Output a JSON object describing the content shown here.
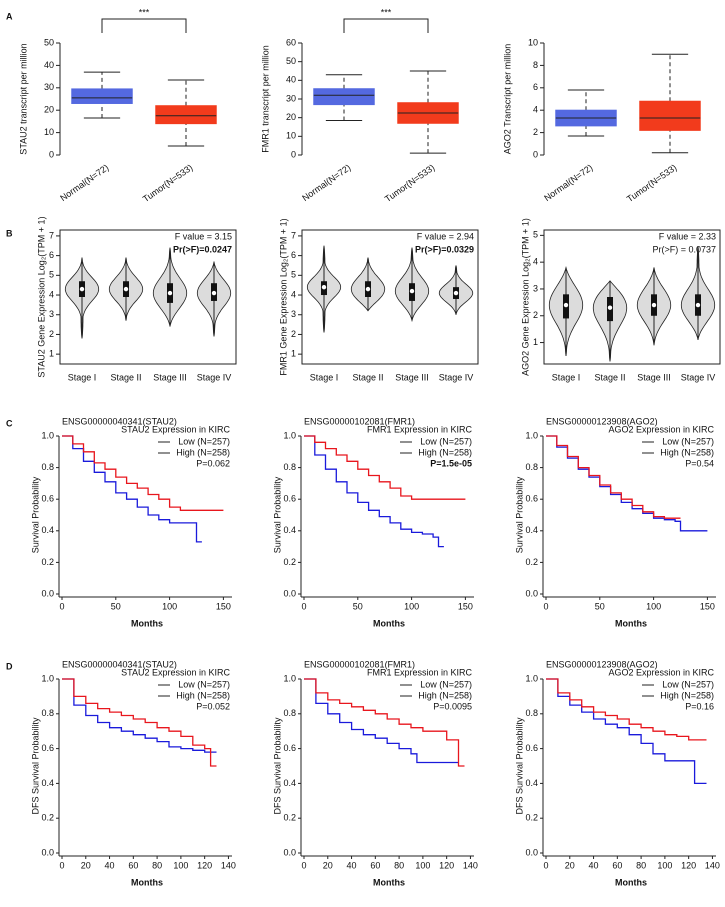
{
  "panel_labels": [
    "A",
    "B",
    "C",
    "D"
  ],
  "chart_data": [
    {
      "type": "box",
      "ylabel": "STAU2 transcript per million",
      "categories": [
        "Normal(N=72)",
        "Tumor(N=533)"
      ],
      "annotation": "***",
      "ylim": [
        0,
        50
      ],
      "yticks": [
        0,
        10,
        20,
        30,
        40,
        50
      ],
      "boxes": [
        {
          "min": 16.5,
          "q1": 23,
          "median": 25.5,
          "q3": 29.5,
          "max": 37,
          "color": "#5469e0"
        },
        {
          "min": 4,
          "q1": 14,
          "median": 17.5,
          "q3": 22,
          "max": 33.5,
          "color": "#f23b1c"
        }
      ]
    },
    {
      "type": "box",
      "ylabel": "FMR1 transcript per million",
      "categories": [
        "Normal(N=72)",
        "Tumor(N=533)"
      ],
      "annotation": "***",
      "ylim": [
        0,
        60
      ],
      "yticks": [
        0,
        10,
        20,
        30,
        40,
        50,
        60
      ],
      "boxes": [
        {
          "min": 18.5,
          "q1": 27,
          "median": 32,
          "q3": 35.5,
          "max": 43,
          "color": "#5469e0"
        },
        {
          "min": 1,
          "q1": 17,
          "median": 22.5,
          "q3": 28,
          "max": 45,
          "color": "#f23b1c"
        }
      ]
    },
    {
      "type": "box",
      "ylabel": "AGO2 Transcript per million",
      "categories": [
        "Normal(N=72)",
        "Tumor(N=533)"
      ],
      "ylim": [
        0,
        10
      ],
      "yticks": [
        0,
        2,
        4,
        6,
        8,
        10
      ],
      "boxes": [
        {
          "min": 1.7,
          "q1": 2.6,
          "median": 3.3,
          "q3": 4.0,
          "max": 5.8,
          "color": "#5469e0"
        },
        {
          "min": 0.2,
          "q1": 2.2,
          "median": 3.3,
          "q3": 4.8,
          "max": 9.0,
          "color": "#f23b1c"
        }
      ]
    },
    {
      "type": "violin",
      "ylabel": "STAU2 Gene Expression Log₂(TPM + 1)",
      "categories": [
        "Stage I",
        "Stage II",
        "Stage III",
        "Stage IV"
      ],
      "f_label": "F value = 3.15",
      "p_label": "Pr(>F)=0.0247",
      "p_color": "#e8232a",
      "p_bold": true,
      "color": "#dcdcdc",
      "ylim": [
        0.5,
        7.3
      ],
      "yticks": [
        1,
        2,
        3,
        4,
        5,
        6,
        7
      ],
      "violins": [
        {
          "min": 1.8,
          "q1": 3.9,
          "median": 4.3,
          "q3": 4.7,
          "max": 5.9
        },
        {
          "min": 2.7,
          "q1": 3.9,
          "median": 4.3,
          "q3": 4.7,
          "max": 5.9
        },
        {
          "min": 2.4,
          "q1": 3.6,
          "median": 4.1,
          "q3": 4.6,
          "max": 6.4
        },
        {
          "min": 1.9,
          "q1": 3.7,
          "median": 4.1,
          "q3": 4.6,
          "max": 5.7
        }
      ]
    },
    {
      "type": "violin",
      "ylabel": "FMR1 Gene Expression Log₂(TPM + 1)",
      "categories": [
        "Stage I",
        "Stage II",
        "Stage III",
        "Stage IV"
      ],
      "f_label": "F value = 2.94",
      "p_label": "Pr(>F)=0.0329",
      "p_color": "#e8232a",
      "p_bold": true,
      "color": "#dcdcdc",
      "ylim": [
        0.5,
        7.3
      ],
      "yticks": [
        1,
        2,
        3,
        4,
        5,
        6,
        7
      ],
      "violins": [
        {
          "min": 2.1,
          "q1": 4.0,
          "median": 4.4,
          "q3": 4.7,
          "max": 6.5
        },
        {
          "min": 3.2,
          "q1": 3.9,
          "median": 4.3,
          "q3": 4.7,
          "max": 5.9
        },
        {
          "min": 2.7,
          "q1": 3.7,
          "median": 4.2,
          "q3": 4.6,
          "max": 6.4
        },
        {
          "min": 3.0,
          "q1": 3.8,
          "median": 4.1,
          "q3": 4.4,
          "max": 5.5
        }
      ]
    },
    {
      "type": "violin",
      "ylabel": "AGO2 Gene Expression Log₂(TPM + 1)",
      "categories": [
        "Stage I",
        "Stage II",
        "Stage III",
        "Stage IV"
      ],
      "f_label": "F value = 2.33",
      "p_label": "Pr(>F) = 0.0737",
      "color": "#dcdcdc",
      "ylim": [
        0.2,
        5.2
      ],
      "yticks": [
        1,
        2,
        3,
        4,
        5
      ],
      "violins": [
        {
          "min": 0.5,
          "q1": 1.9,
          "median": 2.4,
          "q3": 2.8,
          "max": 3.8
        },
        {
          "min": 0.3,
          "q1": 1.8,
          "median": 2.3,
          "q3": 2.7,
          "max": 3.3
        },
        {
          "min": 0.9,
          "q1": 2.0,
          "median": 2.4,
          "q3": 2.8,
          "max": 3.8
        },
        {
          "min": 1.1,
          "q1": 2.0,
          "median": 2.4,
          "q3": 2.8,
          "max": 4.6
        }
      ]
    },
    {
      "type": "km",
      "title": "ENSG00000040341(STAU2)",
      "subtitle": "STAU2 Expression in KIRC",
      "xlabel": "Months",
      "ylabel": "Survival Probability",
      "p_label": "P=0.062",
      "xlim": [
        0,
        158
      ],
      "xticks": [
        0,
        50,
        100,
        150
      ],
      "ylim": [
        0,
        1
      ],
      "yticks": [
        {
          "value": 0,
          "label": "0.0"
        },
        0.2,
        0.4,
        0.6,
        0.8,
        {
          "value": 1,
          "label": "1.0"
        }
      ],
      "series": [
        {
          "name": "Low (N=257)",
          "color": "#1a1adb",
          "x": [
            0,
            10,
            20,
            30,
            40,
            50,
            60,
            70,
            80,
            90,
            100,
            110,
            120,
            125,
            130
          ],
          "values": [
            1,
            0.92,
            0.84,
            0.77,
            0.71,
            0.64,
            0.6,
            0.55,
            0.5,
            0.47,
            0.45,
            0.45,
            0.45,
            0.33,
            0.33
          ]
        },
        {
          "name": "High (N=258)",
          "color": "#e8161d",
          "x": [
            0,
            10,
            20,
            30,
            40,
            50,
            60,
            70,
            80,
            90,
            100,
            110,
            120,
            150
          ],
          "values": [
            1,
            0.95,
            0.9,
            0.83,
            0.79,
            0.74,
            0.7,
            0.67,
            0.63,
            0.6,
            0.55,
            0.53,
            0.53,
            0.53
          ]
        }
      ]
    },
    {
      "type": "km",
      "title": "ENSG00000102081(FMR1)",
      "subtitle": "FMR1 Expression in KIRC",
      "xlabel": "Months",
      "ylabel": "Survival Probability",
      "p_label": "P=1.5e-05",
      "p_color": "#e8232a",
      "p_bold": true,
      "xlim": [
        0,
        158
      ],
      "xticks": [
        0,
        50,
        100,
        150
      ],
      "ylim": [
        0,
        1
      ],
      "yticks": [
        {
          "value": 0,
          "label": "0.0"
        },
        0.2,
        0.4,
        0.6,
        0.8,
        {
          "value": 1,
          "label": "1.0"
        }
      ],
      "series": [
        {
          "name": "Low (N=257)",
          "color": "#1a1adb",
          "x": [
            0,
            10,
            20,
            30,
            40,
            50,
            60,
            70,
            80,
            90,
            100,
            110,
            120,
            125,
            130
          ],
          "values": [
            1,
            0.88,
            0.79,
            0.71,
            0.64,
            0.58,
            0.53,
            0.49,
            0.45,
            0.41,
            0.39,
            0.38,
            0.36,
            0.3,
            0.3
          ]
        },
        {
          "name": "High (N=258)",
          "color": "#e8161d",
          "x": [
            0,
            10,
            20,
            30,
            40,
            50,
            60,
            70,
            80,
            90,
            100,
            150
          ],
          "values": [
            1,
            0.96,
            0.92,
            0.88,
            0.84,
            0.79,
            0.75,
            0.71,
            0.67,
            0.62,
            0.6,
            0.6
          ]
        }
      ]
    },
    {
      "type": "km",
      "title": "ENSG00000123908(AGO2)",
      "subtitle": "AGO2 Expression in KIRC",
      "xlabel": "Months",
      "ylabel": "Survival Probability",
      "p_label": "P=0.54",
      "xlim": [
        0,
        158
      ],
      "xticks": [
        0,
        50,
        100,
        150
      ],
      "ylim": [
        0,
        1
      ],
      "yticks": [
        {
          "value": 0,
          "label": "0.0"
        },
        0.2,
        0.4,
        0.6,
        0.8,
        {
          "value": 1,
          "label": "1.0"
        }
      ],
      "series": [
        {
          "name": "Low (N=257)",
          "color": "#1a1adb",
          "x": [
            0,
            10,
            20,
            30,
            40,
            50,
            60,
            70,
            80,
            90,
            100,
            110,
            120,
            125,
            150
          ],
          "values": [
            1,
            0.93,
            0.86,
            0.79,
            0.74,
            0.68,
            0.63,
            0.58,
            0.54,
            0.51,
            0.48,
            0.47,
            0.46,
            0.4,
            0.4
          ]
        },
        {
          "name": "High (N=258)",
          "color": "#e8161d",
          "x": [
            0,
            10,
            20,
            30,
            40,
            50,
            60,
            70,
            80,
            90,
            100,
            110,
            120,
            125
          ],
          "values": [
            1,
            0.94,
            0.87,
            0.8,
            0.75,
            0.69,
            0.64,
            0.6,
            0.56,
            0.52,
            0.49,
            0.48,
            0.48,
            0.48
          ]
        }
      ]
    },
    {
      "type": "km",
      "title": "ENSG00000040341(STAU2)",
      "subtitle": "STAU2 Expression in KIRC",
      "xlabel": "Months",
      "ylabel": "DFS Survival Probability",
      "p_label": "P=0.052",
      "xlim": [
        0,
        143
      ],
      "xticks": [
        0,
        20,
        40,
        60,
        80,
        100,
        120,
        140
      ],
      "ylim": [
        0,
        1
      ],
      "yticks": [
        {
          "value": 0,
          "label": "0.0"
        },
        0.2,
        0.4,
        0.6,
        0.8,
        {
          "value": 1,
          "label": "1.0"
        }
      ],
      "series": [
        {
          "name": "Low (N=257)",
          "color": "#1a1adb",
          "x": [
            0,
            10,
            20,
            30,
            40,
            50,
            60,
            70,
            80,
            90,
            100,
            110,
            120,
            130
          ],
          "values": [
            1,
            0.85,
            0.79,
            0.75,
            0.72,
            0.7,
            0.68,
            0.66,
            0.64,
            0.61,
            0.6,
            0.59,
            0.58,
            0.58
          ]
        },
        {
          "name": "High (N=258)",
          "color": "#e8161d",
          "x": [
            0,
            10,
            20,
            30,
            40,
            50,
            60,
            70,
            80,
            90,
            100,
            110,
            120,
            125,
            130
          ],
          "values": [
            1,
            0.9,
            0.86,
            0.83,
            0.81,
            0.79,
            0.77,
            0.75,
            0.72,
            0.7,
            0.67,
            0.62,
            0.6,
            0.5,
            0.5
          ]
        }
      ]
    },
    {
      "type": "km",
      "title": "ENSG00000102081(FMR1)",
      "subtitle": "FMR1 Expression in KIRC",
      "xlabel": "Months",
      "ylabel": "DFS Survival Probability",
      "p_label": "P=0.0095",
      "p_color": "#e8232a",
      "xlim": [
        0,
        143
      ],
      "xticks": [
        0,
        20,
        40,
        60,
        80,
        100,
        120,
        140
      ],
      "ylim": [
        0,
        1
      ],
      "yticks": [
        {
          "value": 0,
          "label": "0.0"
        },
        0.2,
        0.4,
        0.6,
        0.8,
        {
          "value": 1,
          "label": "1.0"
        }
      ],
      "series": [
        {
          "name": "Low (N=257)",
          "color": "#1a1adb",
          "x": [
            0,
            10,
            20,
            30,
            40,
            50,
            60,
            70,
            80,
            90,
            95,
            130
          ],
          "values": [
            1,
            0.86,
            0.8,
            0.75,
            0.71,
            0.68,
            0.66,
            0.63,
            0.6,
            0.57,
            0.52,
            0.52
          ]
        },
        {
          "name": "High (N=258)",
          "color": "#e8161d",
          "x": [
            0,
            10,
            20,
            30,
            40,
            50,
            60,
            70,
            80,
            90,
            100,
            120,
            130,
            135
          ],
          "values": [
            1,
            0.92,
            0.88,
            0.86,
            0.84,
            0.82,
            0.8,
            0.77,
            0.74,
            0.72,
            0.7,
            0.65,
            0.5,
            0.5
          ]
        }
      ]
    },
    {
      "type": "km",
      "title": "ENSG00000123908(AGO2)",
      "subtitle": "AGO2 Expression in KIRC",
      "xlabel": "Months",
      "ylabel": "DFS Survival Probability",
      "p_label": "P=0.16",
      "xlim": [
        0,
        143
      ],
      "xticks": [
        0,
        20,
        40,
        60,
        80,
        100,
        120,
        140
      ],
      "ylim": [
        0,
        1
      ],
      "yticks": [
        {
          "value": 0,
          "label": "0.0"
        },
        0.2,
        0.4,
        0.6,
        0.8,
        {
          "value": 1,
          "label": "1.0"
        }
      ],
      "series": [
        {
          "name": "Low (N=257)",
          "color": "#1a1adb",
          "x": [
            0,
            10,
            20,
            30,
            40,
            50,
            60,
            70,
            80,
            90,
            100,
            120,
            125,
            135
          ],
          "values": [
            1,
            0.9,
            0.85,
            0.81,
            0.77,
            0.74,
            0.72,
            0.68,
            0.63,
            0.57,
            0.53,
            0.53,
            0.4,
            0.4
          ]
        },
        {
          "name": "High (N=258)",
          "color": "#e8161d",
          "x": [
            0,
            10,
            20,
            30,
            40,
            50,
            60,
            70,
            80,
            90,
            100,
            110,
            120,
            135
          ],
          "values": [
            1,
            0.92,
            0.88,
            0.84,
            0.81,
            0.79,
            0.77,
            0.74,
            0.72,
            0.7,
            0.68,
            0.67,
            0.65,
            0.65
          ]
        }
      ]
    }
  ]
}
